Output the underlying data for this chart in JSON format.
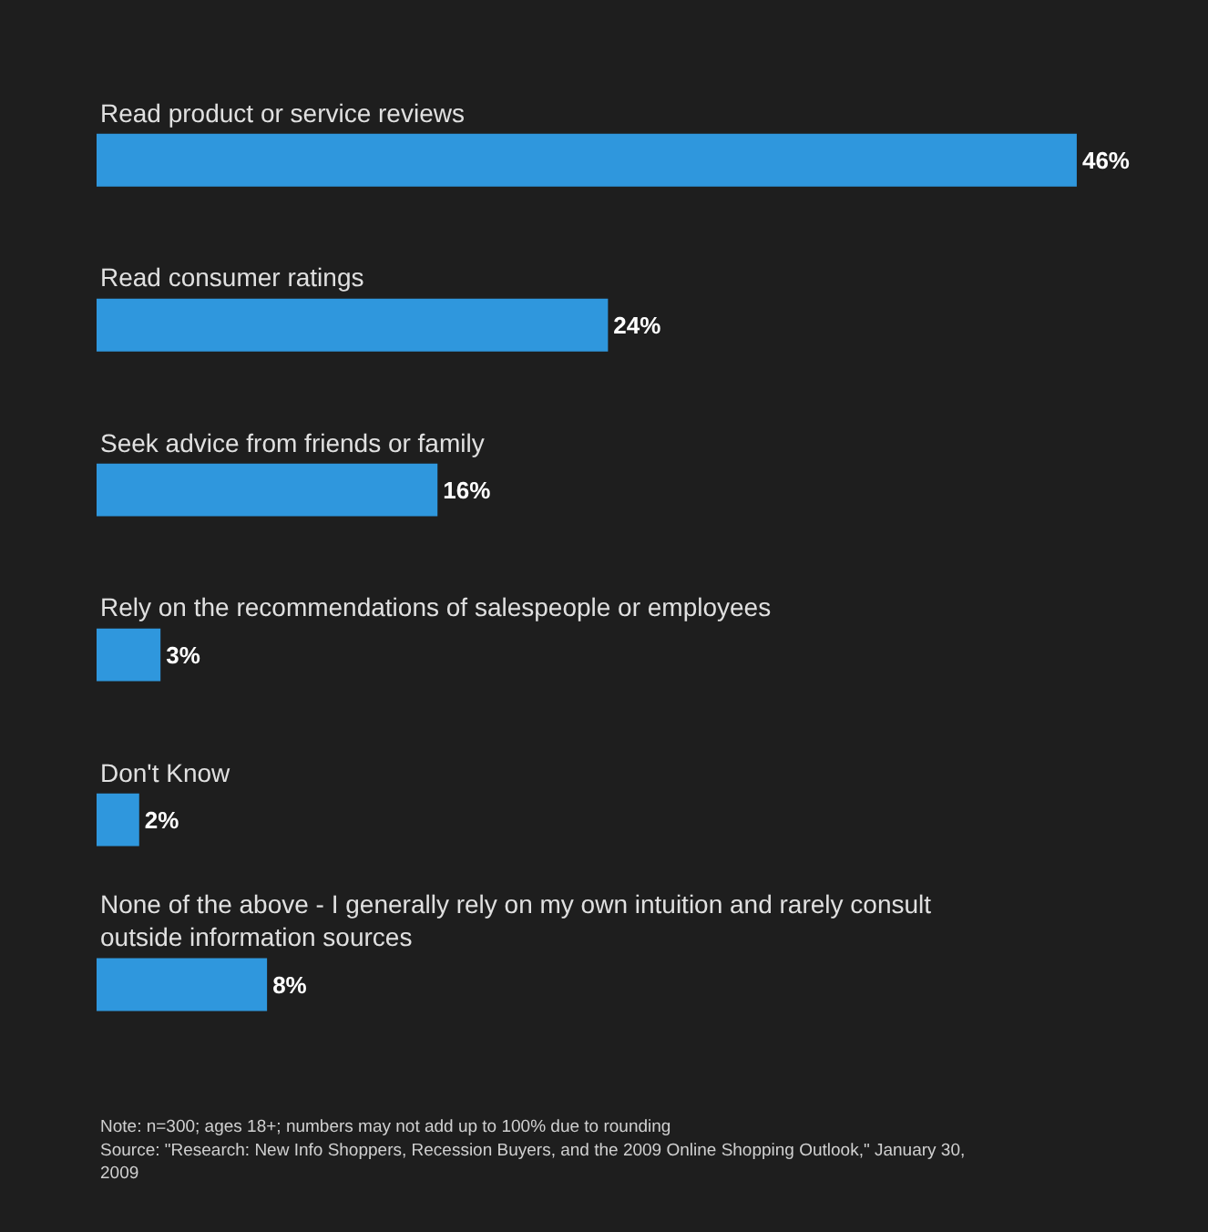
{
  "chart_data": {
    "type": "bar",
    "orientation": "horizontal",
    "categories": [
      "Read product or service reviews",
      "Read consumer ratings",
      "Seek advice from friends or family",
      "Rely on the recommendations of salespeople or employees",
      "Don't Know",
      "None of the above - I generally rely on my own intuition and rarely consult outside information sources"
    ],
    "values": [
      46,
      24,
      16,
      3,
      2,
      8
    ],
    "color": "#2f97dd",
    "value_labels": [
      "46%",
      "24%",
      "16%",
      "3%",
      "2%",
      "8%"
    ],
    "grid": false,
    "legend": false,
    "tick_labels": false,
    "annotations": [
      "Note: n=300; ages 18+; numbers may not add up to 100% due to rounding",
      "Source: \"Research: New Info Shoppers, Recession Buyers, and the 2009 Online Shopping Outlook,\" January 30, 2009"
    ]
  }
}
